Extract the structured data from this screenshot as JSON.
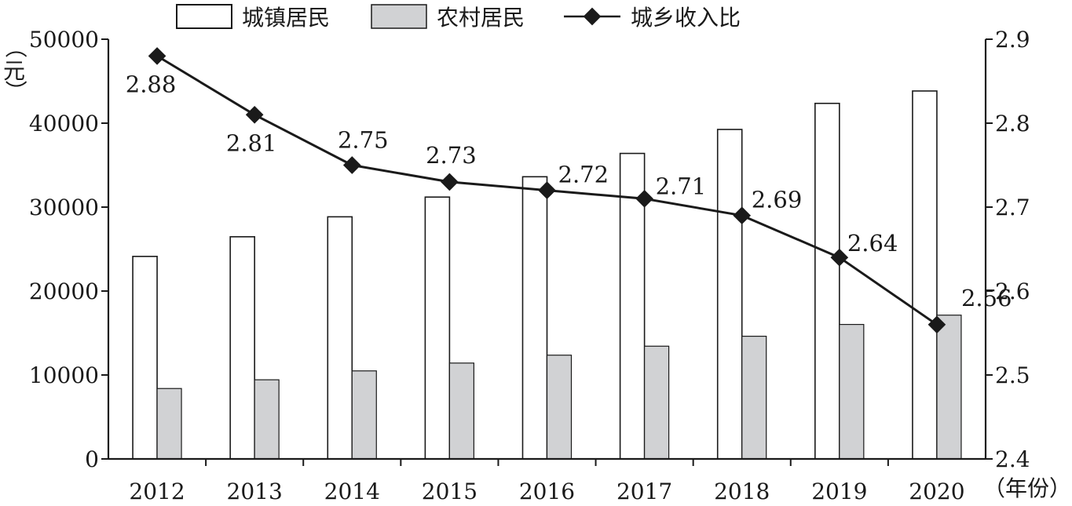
{
  "chart_data": {
    "type": "bar",
    "title": "",
    "categories": [
      "2012",
      "2013",
      "2014",
      "2015",
      "2016",
      "2017",
      "2018",
      "2019",
      "2020"
    ],
    "xlabel": "（年份）",
    "ylabel": "（元）",
    "ylim": [
      0,
      50000
    ],
    "yticks": [
      0,
      10000,
      20000,
      30000,
      40000,
      50000
    ],
    "y2lim": [
      2.4,
      2.9
    ],
    "y2ticks": [
      "2.4",
      "2.5",
      "2.6",
      "2.7",
      "2.8",
      "2.9"
    ],
    "grid": false,
    "legend_position": "top",
    "series": [
      {
        "name": "城镇居民",
        "type": "bar",
        "axis": "left",
        "color": "#ffffff",
        "values": [
          24127,
          26467,
          28844,
          31195,
          33616,
          36396,
          39251,
          42359,
          43834
        ]
      },
      {
        "name": "农村居民",
        "type": "bar",
        "axis": "left",
        "color": "#d1d2d4",
        "values": [
          8389,
          9430,
          10489,
          11422,
          12363,
          13432,
          14617,
          16021,
          17131
        ]
      },
      {
        "name": "城乡收入比",
        "type": "line",
        "axis": "right",
        "color": "#1a1a1a",
        "marker": "diamond",
        "values": [
          2.88,
          2.81,
          2.75,
          2.73,
          2.72,
          2.71,
          2.69,
          2.64,
          2.56
        ],
        "labels": [
          "2.88",
          "2.81",
          "2.75",
          "2.73",
          "2.72",
          "2.71",
          "2.69",
          "2.64",
          "2.56"
        ]
      }
    ]
  }
}
